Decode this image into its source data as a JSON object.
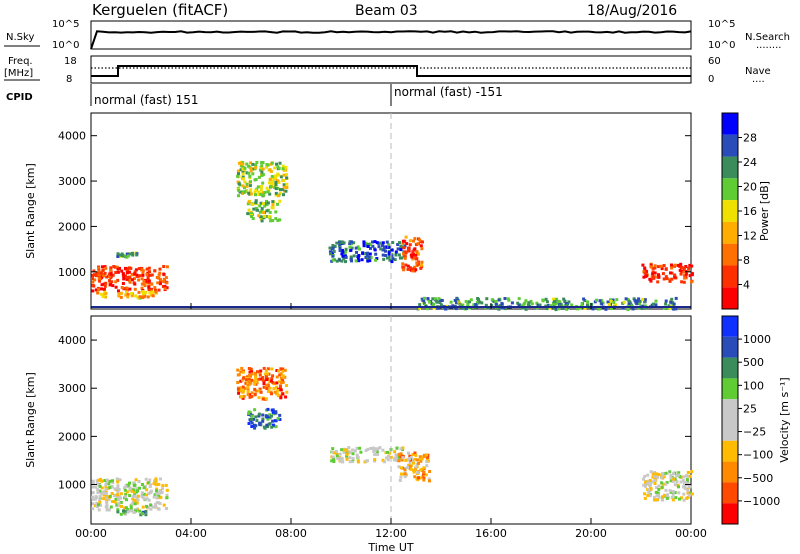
{
  "header": {
    "station": "Kerguelen (fitACF)",
    "beam": "Beam 03",
    "date": "18/Aug/2016"
  },
  "nsky": {
    "label": "N.Sky",
    "ticks": [
      "10^5",
      "10^0"
    ],
    "right_ticks": [
      "10^5",
      "10^0"
    ],
    "right_label": "N.Search",
    "right_legend": "........"
  },
  "freq": {
    "label": "Freq.",
    "unit": "[MHz]",
    "ticks": [
      "18",
      "8"
    ],
    "right_ticks": [
      "60",
      "0"
    ],
    "right_label": "Nave",
    "right_legend": "...."
  },
  "cpid": {
    "label": "CPID",
    "segments": [
      {
        "label": "normal (fast) 151",
        "start_hour": 0
      },
      {
        "label": "normal (fast) -151",
        "start_hour": 12
      }
    ]
  },
  "colors": {
    "power_scale": [
      "#0000ff",
      "#2a4cb8",
      "#3a8c5a",
      "#5fcc33",
      "#f0e000",
      "#ffae00",
      "#ff7000",
      "#ff3000",
      "#ff0000"
    ],
    "velocity_scale": [
      "#1030ff",
      "#2a4cb8",
      "#3a8c5a",
      "#5fcc33",
      "#c8c8c8",
      "#c8c8c8",
      "#ffbb00",
      "#ff8a00",
      "#ff4a00",
      "#ff0000"
    ]
  },
  "chart_data": [
    {
      "type": "heatmap",
      "panel": "power",
      "ylabel": "Slant Range [km]",
      "ylim": [
        180,
        4500
      ],
      "yticks": [
        "4000",
        "3000",
        "2000",
        "1000"
      ],
      "xlim": [
        0,
        24
      ],
      "xticks": [
        "00:00",
        "04:00",
        "08:00",
        "12:00",
        "16:00",
        "20:00",
        "00:00"
      ],
      "colorbar": {
        "label": "Power [dB]",
        "ticks": [
          "28",
          "24",
          "20",
          "16",
          "12",
          "8",
          "4"
        ],
        "range": [
          0,
          32
        ]
      },
      "echo_regions": [
        {
          "t0": 0.0,
          "t1": 3.0,
          "r0": 600,
          "r1": 1150,
          "level": 0.85
        },
        {
          "t0": 0.2,
          "t1": 2.6,
          "r0": 450,
          "r1": 600,
          "level": 0.6
        },
        {
          "t0": 1.0,
          "t1": 1.8,
          "r0": 1350,
          "r1": 1450,
          "level": 0.35
        },
        {
          "t0": 5.8,
          "t1": 7.8,
          "r0": 2700,
          "r1": 3450,
          "level": 0.45
        },
        {
          "t0": 6.2,
          "t1": 7.5,
          "r0": 2150,
          "r1": 2600,
          "level": 0.4
        },
        {
          "t0": 9.5,
          "t1": 12.5,
          "r0": 1250,
          "r1": 1700,
          "level": 0.2
        },
        {
          "t0": 12.4,
          "t1": 13.2,
          "r0": 1050,
          "r1": 1800,
          "level": 0.8
        },
        {
          "t0": 13.0,
          "t1": 23.5,
          "r0": 200,
          "r1": 450,
          "level": 0.3
        },
        {
          "t0": 22.0,
          "t1": 24.0,
          "r0": 800,
          "r1": 1200,
          "level": 0.85
        }
      ]
    },
    {
      "type": "heatmap",
      "panel": "velocity",
      "ylabel": "Slant Range [km]",
      "xlabel": "Time UT",
      "ylim": [
        180,
        4500
      ],
      "yticks": [
        "4000",
        "3000",
        "2000",
        "1000"
      ],
      "xlim": [
        0,
        24
      ],
      "xticks": [
        "00:00",
        "04:00",
        "08:00",
        "12:00",
        "16:00",
        "20:00",
        "00:00"
      ],
      "colorbar": {
        "label": "Velocity [m s⁻¹]",
        "ticks": [
          "1000",
          "500",
          "100",
          "25",
          "−25",
          "−100",
          "−500",
          "−1000"
        ],
        "range": [
          -1000,
          1000
        ]
      },
      "echo_regions": [
        {
          "t0": 0.0,
          "t1": 3.0,
          "r0": 500,
          "r1": 1150,
          "level": 0.5
        },
        {
          "t0": 1.0,
          "t1": 2.2,
          "r0": 400,
          "r1": 500,
          "level": 0.35
        },
        {
          "t0": 5.8,
          "t1": 7.8,
          "r0": 2800,
          "r1": 3450,
          "level": 0.78
        },
        {
          "t0": 6.2,
          "t1": 7.5,
          "r0": 2200,
          "r1": 2600,
          "level": 0.2
        },
        {
          "t0": 9.5,
          "t1": 12.5,
          "r0": 1500,
          "r1": 1800,
          "level": 0.5
        },
        {
          "t0": 12.2,
          "t1": 13.5,
          "r0": 1100,
          "r1": 1700,
          "level": 0.7
        },
        {
          "t0": 22.0,
          "t1": 24.0,
          "r0": 700,
          "r1": 1300,
          "level": 0.5
        }
      ]
    }
  ]
}
